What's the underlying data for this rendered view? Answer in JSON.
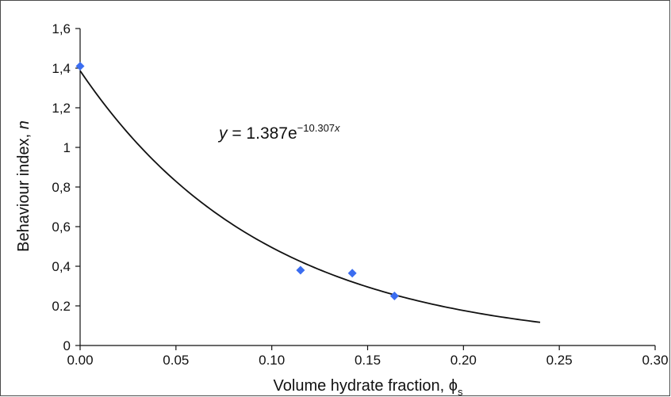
{
  "chart_data": {
    "type": "scatter",
    "xlabel_text": "Volume hydrate fraction, ",
    "xlabel_symbol": "ϕ",
    "xlabel_sub": "s",
    "ylabel_text": "Behaviour index, ",
    "ylabel_var": "n",
    "xlim": [
      0,
      0.3
    ],
    "ylim": [
      0,
      1.6
    ],
    "x_ticks": [
      0.0,
      0.05,
      0.1,
      0.15,
      0.2,
      0.25,
      0.3
    ],
    "x_tick_labels": [
      "0.00",
      "0.05",
      "0.10",
      "0.15",
      "0.20",
      "0.25",
      "0.30"
    ],
    "y_ticks": [
      0,
      0.2,
      0.4,
      0.6,
      0.8,
      1.0,
      1.2,
      1.4,
      1.6
    ],
    "y_tick_labels": [
      "0",
      "0.2",
      "0,4",
      "0,6",
      "0,8",
      "1",
      "1,2",
      "1,4",
      "1,6"
    ],
    "grid": false,
    "series": [
      {
        "type": "scatter",
        "marker": "diamond",
        "color": "#3b6df0",
        "x": [
          0.0,
          0.115,
          0.142,
          0.164
        ],
        "y": [
          1.41,
          0.38,
          0.365,
          0.25
        ]
      }
    ],
    "fit": {
      "type": "exponential",
      "a": 1.387,
      "b": -10.307,
      "x_range": [
        0,
        0.24
      ],
      "color": "#111111"
    },
    "equation": {
      "y": "y",
      "eq": " = 1.387e",
      "exp": "−10.307",
      "exp_var": "x"
    }
  }
}
